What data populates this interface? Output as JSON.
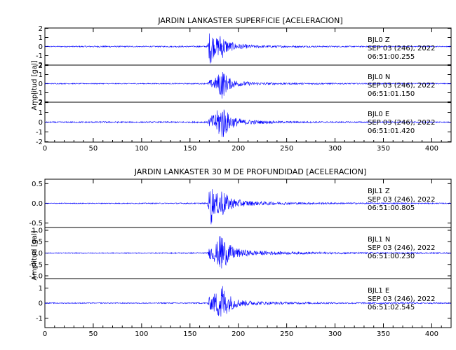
{
  "chart_data": [
    {
      "type": "line",
      "title": "JARDIN LANKASTER SUPERFICIE [ACELERACION]",
      "xlabel": "",
      "ylabel": "Amplitud [gal]",
      "xlim": [
        0,
        420
      ],
      "x_ticks": [
        "0",
        "50",
        "100",
        "150",
        "200",
        "250",
        "300",
        "350",
        "400"
      ],
      "grid": false,
      "panels": [
        {
          "channel": "Z",
          "annotation": [
            "BJL0   Z",
            "SEP 03 (246), 2022",
            "06:51:00.255"
          ],
          "ylim": [
            -2,
            2
          ],
          "y_ticks": [
            "2",
            "1",
            "0",
            "-1",
            "-2"
          ],
          "envelope": [
            [
              0,
              0.05
            ],
            [
              60,
              0.08
            ],
            [
              100,
              0.06
            ],
            [
              168,
              0.08
            ],
            [
              170,
              1.6
            ],
            [
              172,
              2.3
            ],
            [
              174,
              1.3
            ],
            [
              176,
              0.8
            ],
            [
              178,
              1.0
            ],
            [
              180,
              1.2
            ],
            [
              182,
              1.5
            ],
            [
              184,
              1.3
            ],
            [
              186,
              0.9
            ],
            [
              190,
              0.6
            ],
            [
              196,
              0.4
            ],
            [
              205,
              0.25
            ],
            [
              220,
              0.15
            ],
            [
              250,
              0.1
            ],
            [
              300,
              0.07
            ],
            [
              350,
              0.06
            ],
            [
              420,
              0.05
            ]
          ]
        },
        {
          "channel": "N",
          "annotation": [
            "BJL0   N",
            "SEP 03 (246), 2022",
            "06:51:01.150"
          ],
          "ylim": [
            -2,
            2
          ],
          "y_ticks": [
            "2",
            "1",
            "0",
            "-1",
            "-2"
          ],
          "envelope": [
            [
              0,
              0.05
            ],
            [
              100,
              0.05
            ],
            [
              168,
              0.06
            ],
            [
              170,
              0.4
            ],
            [
              174,
              0.5
            ],
            [
              178,
              0.8
            ],
            [
              180,
              1.2
            ],
            [
              183,
              1.8
            ],
            [
              186,
              1.2
            ],
            [
              190,
              0.7
            ],
            [
              196,
              0.4
            ],
            [
              205,
              0.25
            ],
            [
              220,
              0.15
            ],
            [
              250,
              0.1
            ],
            [
              300,
              0.07
            ],
            [
              420,
              0.05
            ]
          ]
        },
        {
          "channel": "E",
          "annotation": [
            "BJL0   E",
            "SEP 03 (246), 2022",
            "06:51:01.420"
          ],
          "ylim": [
            -2,
            2
          ],
          "y_ticks": [
            "2",
            "1",
            "0",
            "-1",
            "-2"
          ],
          "envelope": [
            [
              0,
              0.05
            ],
            [
              60,
              0.08
            ],
            [
              100,
              0.06
            ],
            [
              168,
              0.08
            ],
            [
              170,
              0.5
            ],
            [
              174,
              0.8
            ],
            [
              178,
              1.2
            ],
            [
              181,
              1.6
            ],
            [
              184,
              1.9
            ],
            [
              187,
              1.3
            ],
            [
              190,
              0.9
            ],
            [
              196,
              0.5
            ],
            [
              205,
              0.3
            ],
            [
              220,
              0.18
            ],
            [
              250,
              0.1
            ],
            [
              300,
              0.07
            ],
            [
              420,
              0.05
            ]
          ]
        }
      ]
    },
    {
      "type": "line",
      "title": "JARDIN LANKASTER 30 M DE PROFUNDIDAD [ACELERACION]",
      "xlabel": "",
      "ylabel": "Amplitud [gal]",
      "xlim": [
        0,
        420
      ],
      "x_ticks": [
        "0",
        "50",
        "100",
        "150",
        "200",
        "250",
        "300",
        "350",
        "400"
      ],
      "grid": false,
      "panels": [
        {
          "channel": "Z",
          "annotation": [
            "BJL1   Z",
            "SEP 03 (246), 2022",
            "06:51:00.805"
          ],
          "ylim": [
            -0.6,
            0.6
          ],
          "y_ticks": [
            "0.5",
            "0.0",
            "-0.5"
          ],
          "envelope": [
            [
              0,
              0.01
            ],
            [
              100,
              0.012
            ],
            [
              168,
              0.015
            ],
            [
              170,
              0.35
            ],
            [
              172,
              0.6
            ],
            [
              174,
              0.3
            ],
            [
              178,
              0.25
            ],
            [
              182,
              0.45
            ],
            [
              185,
              0.3
            ],
            [
              190,
              0.18
            ],
            [
              196,
              0.12
            ],
            [
              205,
              0.08
            ],
            [
              220,
              0.05
            ],
            [
              250,
              0.03
            ],
            [
              300,
              0.02
            ],
            [
              420,
              0.012
            ]
          ]
        },
        {
          "channel": "N",
          "annotation": [
            "BJL1   N",
            "SEP 03 (246), 2022",
            "06:51:00.230"
          ],
          "ylim": [
            -1.1,
            1.1
          ],
          "y_ticks": [
            "1.0",
            "0.5",
            "0.0",
            "-0.5",
            "-1.0"
          ],
          "envelope": [
            [
              0,
              0.02
            ],
            [
              100,
              0.02
            ],
            [
              168,
              0.03
            ],
            [
              170,
              0.25
            ],
            [
              174,
              0.35
            ],
            [
              178,
              0.5
            ],
            [
              181,
              0.8
            ],
            [
              183,
              1.05
            ],
            [
              186,
              0.6
            ],
            [
              190,
              0.4
            ],
            [
              196,
              0.25
            ],
            [
              205,
              0.15
            ],
            [
              220,
              0.1
            ],
            [
              250,
              0.06
            ],
            [
              300,
              0.04
            ],
            [
              420,
              0.025
            ]
          ]
        },
        {
          "channel": "E",
          "annotation": [
            "BJL1   E",
            "SEP 03 (246), 2022",
            "06:51:02.545"
          ],
          "ylim": [
            -1.6,
            1.6
          ],
          "y_ticks": [
            "1",
            "0",
            "-1"
          ],
          "envelope": [
            [
              0,
              0.03
            ],
            [
              100,
              0.03
            ],
            [
              168,
              0.04
            ],
            [
              170,
              0.4
            ],
            [
              174,
              0.6
            ],
            [
              178,
              0.8
            ],
            [
              181,
              1.2
            ],
            [
              183,
              1.5
            ],
            [
              186,
              0.9
            ],
            [
              190,
              0.6
            ],
            [
              196,
              0.35
            ],
            [
              205,
              0.2
            ],
            [
              220,
              0.12
            ],
            [
              250,
              0.08
            ],
            [
              300,
              0.05
            ],
            [
              420,
              0.04
            ]
          ]
        }
      ]
    }
  ]
}
